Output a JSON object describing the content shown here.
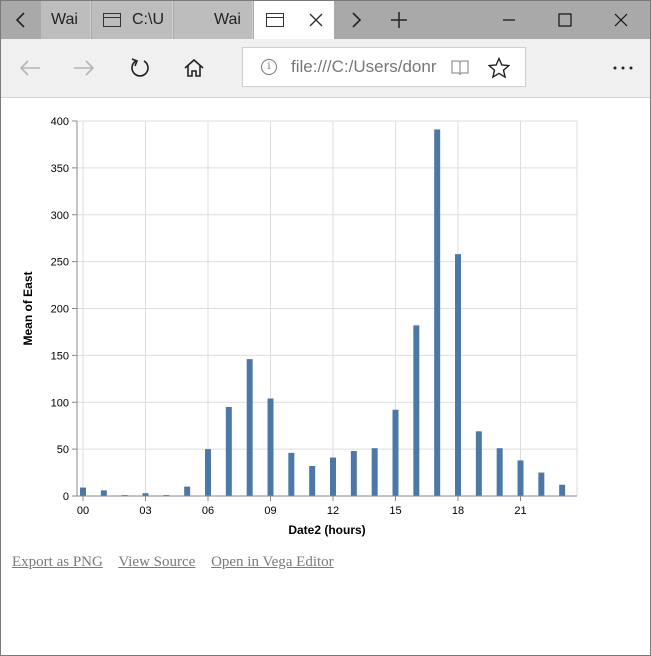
{
  "browser": {
    "tabs": [
      {
        "label": "Wai",
        "icon": "page-icon",
        "active": false
      },
      {
        "label": "C:\\U",
        "icon": "tab-window-icon",
        "active": false
      },
      {
        "label": "Wai",
        "icon": "page-icon",
        "active": false
      },
      {
        "label": "",
        "icon": "tab-window-icon",
        "active": true
      }
    ],
    "address": {
      "url": "file:///C:/Users/donr"
    }
  },
  "links": {
    "export_png": "Export as PNG",
    "view_source": "View Source",
    "open_editor": "Open in Vega Editor"
  },
  "colors": {
    "bar": "#4c78a8",
    "grid": "#dddddd",
    "tabstrip": "#a9a9a9",
    "toolbar": "#f0f0f0"
  },
  "chart_data": {
    "type": "bar",
    "xlabel": "Date2 (hours)",
    "ylabel": "Mean of East",
    "ylim": [
      0,
      400
    ],
    "y_ticks": [
      0,
      50,
      100,
      150,
      200,
      250,
      300,
      350,
      400
    ],
    "x_tick_labels": [
      "00",
      "03",
      "06",
      "09",
      "12",
      "15",
      "18",
      "21"
    ],
    "x_tick_hours": [
      0,
      3,
      6,
      9,
      12,
      15,
      18,
      21
    ],
    "x": [
      0,
      1,
      2,
      3,
      4,
      5,
      6,
      7,
      8,
      9,
      10,
      11,
      12,
      13,
      14,
      15,
      16,
      17,
      18,
      19,
      20,
      21,
      22,
      23
    ],
    "values": [
      9,
      6,
      1,
      3,
      1,
      10,
      50,
      95,
      146,
      104,
      46,
      32,
      41,
      48,
      51,
      92,
      182,
      391,
      258,
      69,
      51,
      38,
      25,
      12
    ],
    "grid": true
  }
}
